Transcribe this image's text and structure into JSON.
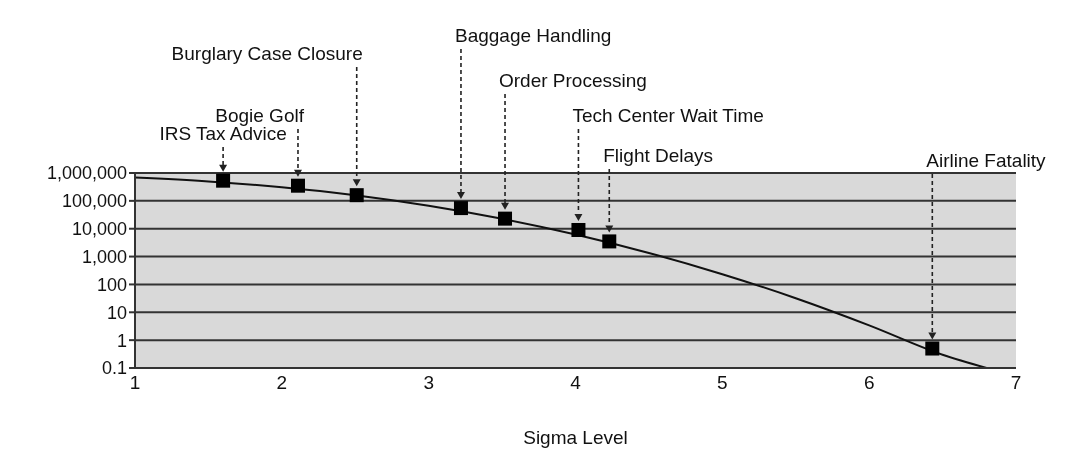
{
  "chart_data": {
    "type": "line",
    "xlabel": "Sigma Level",
    "xlim": [
      1,
      7
    ],
    "xticks": [
      1,
      2,
      3,
      4,
      5,
      6,
      7
    ],
    "ylim": [
      0.1,
      1000000
    ],
    "yticks": [
      0.1,
      1,
      10,
      100,
      {
        "value": 1000,
        "label": "1,000"
      },
      {
        "value": 10000,
        "label": "10,000"
      },
      {
        "value": 100000,
        "label": "100,000"
      },
      {
        "value": 1000000,
        "label": "1,000,000"
      }
    ],
    "log": "y",
    "grid": "y",
    "legend": false,
    "series": [
      {
        "type": "line",
        "color": "#111111",
        "marker": "none",
        "line_style": "solid",
        "x": [
          1,
          1.5,
          2,
          2.5,
          3,
          3.5,
          4,
          4.5,
          5,
          5.5,
          6,
          6.5,
          6.8
        ],
        "values": [
          690000,
          500000,
          308000,
          159000,
          66800,
          22700,
          6210,
          1350,
          233,
          32,
          3.4,
          0.3,
          0.1
        ]
      },
      {
        "type": "scatter",
        "color": "#000000",
        "marker": "square",
        "x": [
          1.6,
          2.11,
          2.51,
          3.22,
          3.52,
          4.02,
          4.23,
          6.43
        ],
        "values": [
          530000,
          350000,
          160000,
          55000,
          23000,
          9000,
          3500,
          0.5
        ]
      }
    ],
    "annotations": [
      "IRS Tax Advice",
      "Bogie Golf",
      "Burglary Case Closure",
      "Baggage Handling",
      "Order Processing",
      "Tech Center Wait Time",
      "Flight Delays",
      "Airline Fatality"
    ]
  }
}
